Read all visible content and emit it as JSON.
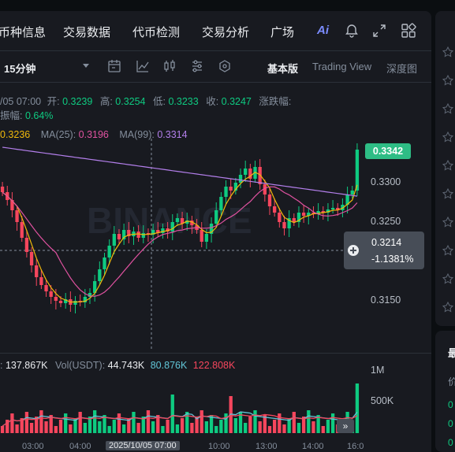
{
  "nav": {
    "items": [
      "币种信息",
      "交易数据",
      "代币检测",
      "交易分析",
      "广场"
    ],
    "ai_label": "Ai"
  },
  "toolbar": {
    "interval": "15分钟",
    "basic": "基本版",
    "tradingview": "Trading View",
    "depth": "深度图"
  },
  "ohlc": {
    "time": "/05 07:00",
    "open_label": "开:",
    "open": "0.3239",
    "high_label": "高:",
    "high": "0.3254",
    "low_label": "低:",
    "low": "0.3233",
    "close_label": "收:",
    "close": "0.3247",
    "change_label": "涨跌幅:",
    "amp_label": "振幅:",
    "amp": "0.64%"
  },
  "ma": {
    "ma7_value": "0.3236",
    "ma25_label": "MA(25):",
    "ma25_value": "0.3196",
    "ma99_label": "MA(99):",
    "ma99_value": "0.3314"
  },
  "price_axis": {
    "current": "0.3342",
    "crosshair_price": "0.3214",
    "crosshair_change": "-1.1381%",
    "ticks": [
      "0.3300",
      "0.3250",
      "0.3150"
    ]
  },
  "volume": {
    "vol_value": "137.867K",
    "vol_usdt_label": "Vol(USDT):",
    "vol_usdt_value": "44.743K",
    "ma1": "80.876K",
    "ma2": "122.808K",
    "ticks": [
      "1M",
      "500K"
    ]
  },
  "bottom_axis": {
    "labels": [
      "03:00",
      "04:00",
      "2025/10/05 07:00",
      "10:00",
      "13:00",
      "14:00",
      "16:0"
    ]
  },
  "right_panel": {
    "heading": "最",
    "price_char": "价"
  },
  "colors": {
    "up": "#0ecb81",
    "down": "#f6465d",
    "ma7": "#f0b90b",
    "ma25": "#e052a0",
    "ma99": "#b37feb"
  }
}
